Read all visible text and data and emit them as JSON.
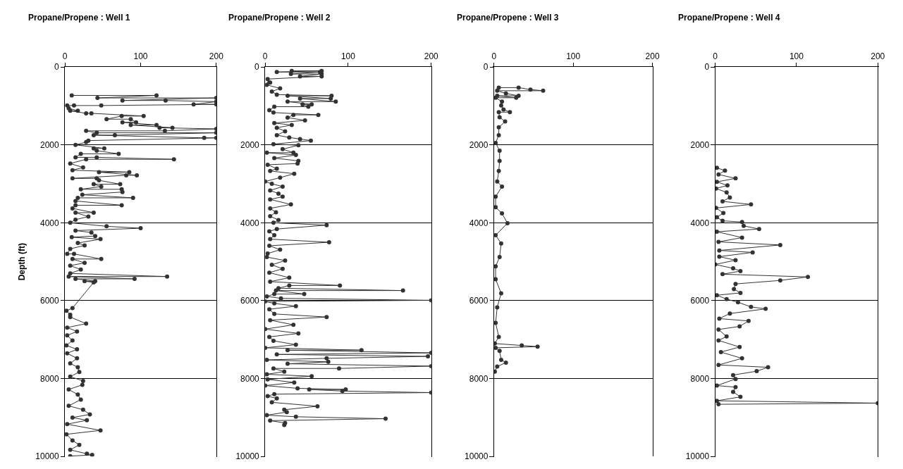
{
  "chart_data": [
    {
      "type": "line",
      "title": "Propane/Propene : Well 1",
      "ylabel": "Depth (ft)",
      "xlim": [
        0,
        200
      ],
      "xticks": [
        0,
        100,
        200
      ],
      "ylim": [
        10000,
        0
      ],
      "yticks": [
        0,
        2000,
        4000,
        6000,
        8000,
        10000
      ],
      "grid": "y",
      "marker": "circle",
      "series": [
        {
          "color": "#333333",
          "x": [
            9,
            121,
            43,
            200,
            76,
            133,
            200,
            170,
            200,
            48,
            12,
            3,
            5,
            17,
            7,
            28,
            35,
            104,
            75,
            55,
            87,
            94,
            76,
            121,
            87,
            142,
            125,
            200,
            132,
            28,
            42,
            200,
            66,
            38,
            184,
            200,
            31,
            28,
            14,
            52,
            38,
            42,
            71,
            21,
            14,
            42,
            144,
            28,
            7,
            24,
            10,
            85,
            45,
            95,
            81,
            10,
            42,
            45,
            73,
            38,
            48,
            21,
            75,
            76,
            23,
            90,
            17,
            14,
            75,
            14,
            10,
            38,
            14,
            31,
            14,
            7,
            55,
            100,
            14,
            35,
            40,
            9,
            47,
            17,
            26,
            7,
            3,
            12,
            48,
            10,
            26,
            7,
            21,
            7,
            135,
            5,
            92,
            14,
            40,
            26,
            38,
            10,
            2,
            7,
            7,
            28,
            3,
            16,
            3,
            10,
            2,
            16,
            3,
            16,
            7,
            17,
            19,
            7,
            24,
            23,
            5,
            17,
            21,
            5,
            24,
            33,
            10,
            29,
            3,
            47,
            2,
            10,
            19,
            7,
            29,
            36,
            7
          ],
          "values": [
            730,
            730,
            795,
            795,
            860,
            860,
            890,
            960,
            960,
            990,
            990,
            990,
            1060,
            1125,
            1125,
            1190,
            1190,
            1260,
            1260,
            1340,
            1340,
            1420,
            1420,
            1490,
            1490,
            1560,
            1560,
            1590,
            1640,
            1640,
            1690,
            1690,
            1750,
            1750,
            1820,
            1820,
            1890,
            1930,
            2000,
            2090,
            2090,
            2150,
            2230,
            2230,
            2320,
            2320,
            2370,
            2370,
            2480,
            2580,
            2650,
            2700,
            2700,
            2780,
            2780,
            2860,
            2860,
            2910,
            3010,
            3010,
            3070,
            3140,
            3140,
            3210,
            3280,
            3360,
            3360,
            3440,
            3550,
            3550,
            3630,
            3740,
            3740,
            3840,
            3920,
            4000,
            4090,
            4140,
            4200,
            4250,
            4340,
            4370,
            4420,
            4520,
            4580,
            4670,
            4800,
            4800,
            4930,
            4930,
            5030,
            5100,
            5200,
            5300,
            5380,
            5380,
            5440,
            5440,
            5500,
            5500,
            5530,
            6190,
            6260,
            6360,
            6420,
            6590,
            6690,
            6790,
            6890,
            7020,
            7150,
            7250,
            7350,
            7480,
            7610,
            7710,
            7830,
            7950,
            8060,
            8160,
            8280,
            8410,
            8540,
            8700,
            8800,
            8920,
            9000,
            9070,
            9170,
            9330,
            9430,
            9590,
            9700,
            9830,
            9930,
            9960,
            9990
          ]
        }
      ]
    },
    {
      "type": "line",
      "title": "Propane/Propene : Well 2",
      "xlim": [
        0,
        200
      ],
      "xticks": [
        0,
        100,
        200
      ],
      "ylim": [
        10000,
        0
      ],
      "yticks": [
        0,
        2000,
        4000,
        6000,
        8000,
        10000
      ],
      "grid": "y",
      "marker": "circle",
      "series": [
        {
          "color": "#333333",
          "x": [
            32,
            68,
            14,
            66,
            31,
            68,
            42,
            68,
            3,
            5,
            6,
            2,
            18,
            8,
            14,
            80,
            27,
            79,
            42,
            85,
            27,
            56,
            45,
            52,
            11,
            5,
            10,
            64,
            34,
            27,
            48,
            11,
            32,
            14,
            24,
            14,
            29,
            42,
            55,
            10,
            40,
            21,
            34,
            2,
            37,
            11,
            40,
            39,
            3,
            14,
            6,
            35,
            18,
            0,
            8,
            21,
            6,
            16,
            21,
            6,
            31,
            6,
            13,
            6,
            16,
            10,
            74,
            14,
            5,
            11,
            6,
            77,
            5,
            18,
            3,
            2,
            24,
            8,
            21,
            5,
            29,
            6,
            90,
            29,
            16,
            166,
            13,
            47,
            11,
            2,
            19,
            200,
            0,
            11,
            37,
            5,
            11,
            74,
            6,
            34,
            0,
            40,
            5,
            10,
            37,
            0,
            116,
            27,
            200,
            14,
            196,
            74,
            2,
            76,
            27,
            200,
            89,
            10,
            23,
            2,
            56,
            3,
            35,
            0,
            39,
            97,
            53,
            93,
            200,
            11,
            3,
            14,
            8,
            63,
            23,
            26,
            2,
            37,
            145,
            6,
            24,
            23
          ],
          "values": [
            100,
            100,
            130,
            130,
            180,
            180,
            240,
            240,
            310,
            400,
            400,
            460,
            550,
            630,
            710,
            740,
            740,
            810,
            810,
            890,
            890,
            960,
            960,
            1020,
            1020,
            1110,
            1170,
            1230,
            1230,
            1300,
            1370,
            1440,
            1490,
            1560,
            1650,
            1750,
            1810,
            1850,
            1890,
            1980,
            2010,
            2110,
            2200,
            2200,
            2260,
            2340,
            2410,
            2480,
            2510,
            2610,
            2670,
            2740,
            2840,
            2940,
            3000,
            3070,
            3170,
            3250,
            3330,
            3400,
            3530,
            3630,
            3730,
            3830,
            3930,
            4000,
            4060,
            4160,
            4220,
            4320,
            4420,
            4500,
            4590,
            4690,
            4790,
            4880,
            4970,
            5080,
            5180,
            5280,
            5410,
            5510,
            5610,
            5610,
            5680,
            5740,
            5740,
            5830,
            5830,
            5890,
            5940,
            5990,
            6020,
            6070,
            6140,
            6220,
            6340,
            6420,
            6500,
            6620,
            6730,
            6840,
            6930,
            7030,
            7130,
            7210,
            7270,
            7270,
            7340,
            7380,
            7430,
            7480,
            7520,
            7570,
            7620,
            7680,
            7740,
            7740,
            7820,
            7890,
            7940,
            8020,
            8100,
            8180,
            8250,
            8280,
            8280,
            8320,
            8360,
            8400,
            8450,
            8510,
            8610,
            8710,
            8800,
            8860,
            8940,
            8980,
            9030,
            9080,
            9140,
            9190
          ]
        }
      ]
    },
    {
      "type": "line",
      "title": "Propane/Propene : Well 3",
      "xlim": [
        0,
        200
      ],
      "xticks": [
        0,
        100,
        200
      ],
      "ylim": [
        10000,
        0
      ],
      "yticks": [
        0,
        2000,
        4000,
        6000,
        8000,
        10000
      ],
      "grid": "y",
      "marker": "circle",
      "series": [
        {
          "color": "#333333",
          "x": [
            6,
            31,
            46,
            62,
            4,
            15,
            31,
            4,
            28,
            2,
            10,
            9,
            12,
            20,
            6,
            7,
            14,
            6,
            6,
            2,
            7,
            7,
            6,
            4,
            10,
            2,
            2,
            10,
            17,
            2,
            9,
            7,
            2,
            2,
            9,
            4,
            2,
            6,
            1,
            35,
            55,
            2,
            7,
            9,
            15,
            4,
            1
          ],
          "values": [
            530,
            530,
            580,
            610,
            610,
            680,
            740,
            740,
            790,
            790,
            890,
            990,
            1090,
            1160,
            1160,
            1290,
            1400,
            1550,
            1750,
            1950,
            2150,
            2410,
            2670,
            2940,
            3070,
            3330,
            3600,
            3760,
            4010,
            4320,
            4530,
            4880,
            5120,
            5450,
            5810,
            6170,
            6570,
            6930,
            7100,
            7150,
            7180,
            7210,
            7290,
            7520,
            7590,
            7690,
            7820
          ]
        }
      ]
    },
    {
      "type": "line",
      "title": "Propane/Propene : Well 4",
      "xlim": [
        0,
        200
      ],
      "xticks": [
        0,
        100,
        200
      ],
      "ylim": [
        10000,
        0
      ],
      "yticks": [
        0,
        2000,
        4000,
        6000,
        8000,
        10000
      ],
      "grid": "y",
      "marker": "circle",
      "series": [
        {
          "color": "#333333",
          "x": [
            2,
            12,
            4,
            25,
            2,
            15,
            1,
            14,
            18,
            9,
            44,
            1,
            10,
            2,
            9,
            33,
            35,
            54,
            2,
            33,
            4,
            80,
            5,
            46,
            5,
            25,
            0,
            22,
            31,
            9,
            114,
            80,
            25,
            23,
            31,
            2,
            14,
            28,
            44,
            62,
            18,
            5,
            41,
            30,
            4,
            14,
            4,
            30,
            7,
            33,
            4,
            65,
            51,
            22,
            25,
            2,
            25,
            22,
            31,
            2,
            200,
            4
          ],
          "values": [
            2590,
            2660,
            2760,
            2860,
            2950,
            3040,
            3120,
            3220,
            3350,
            3450,
            3530,
            3620,
            3750,
            3860,
            3950,
            3980,
            4080,
            4160,
            4230,
            4380,
            4490,
            4570,
            4710,
            4760,
            4870,
            4960,
            5070,
            5170,
            5240,
            5320,
            5390,
            5480,
            5570,
            5700,
            5800,
            5860,
            5960,
            6040,
            6160,
            6210,
            6330,
            6460,
            6520,
            6660,
            6740,
            6920,
            7020,
            7190,
            7320,
            7480,
            7650,
            7710,
            7810,
            7910,
            8010,
            8180,
            8220,
            8340,
            8470,
            8570,
            8630,
            8660
          ]
        }
      ]
    }
  ]
}
